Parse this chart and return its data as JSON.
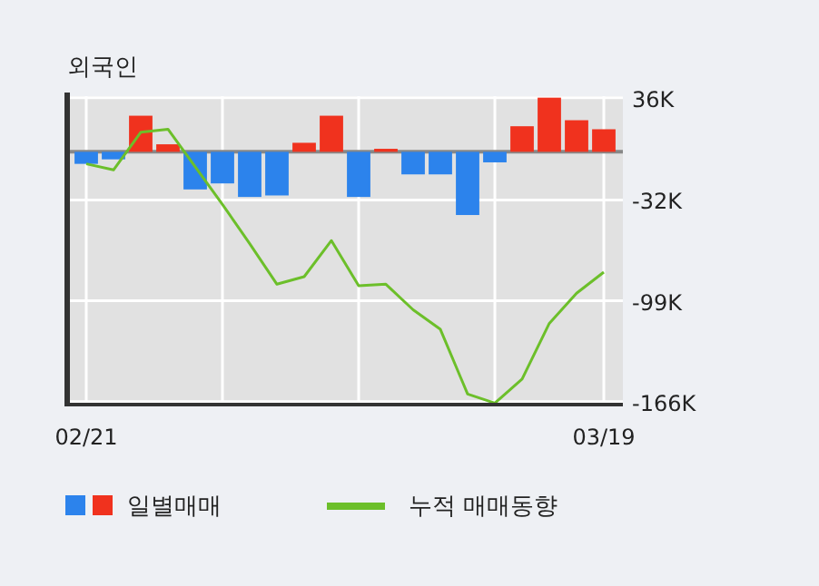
{
  "chart_data": {
    "type": "bar",
    "title": "외국인",
    "categories": [
      "02/21",
      null,
      null,
      null,
      null,
      null,
      null,
      null,
      null,
      null,
      null,
      null,
      null,
      null,
      null,
      null,
      null,
      null,
      null,
      "03/19"
    ],
    "series": [
      {
        "name": "일별매매",
        "colors": [
          "#2c83ec",
          "#2c83ec",
          "#f0321e",
          "#f0321e",
          "#2c83ec",
          "#2c83ec",
          "#2c83ec",
          "#2c83ec",
          "#f0321e",
          "#f0321e",
          "#2c83ec",
          "#f0321e",
          "#2c83ec",
          "#2c83ec",
          "#2c83ec",
          "#2c83ec",
          "#f0321e",
          "#f0321e",
          "#f0321e",
          "#f0321e"
        ],
        "values": [
          -8000,
          -5000,
          24000,
          5000,
          -25000,
          -21000,
          -30000,
          -29000,
          6000,
          24000,
          -30000,
          2000,
          -15000,
          -15000,
          -42000,
          -7000,
          17000,
          36000,
          21000,
          15000
        ]
      },
      {
        "name": "누적 매매동향",
        "type": "line",
        "color": "#6cbf2a",
        "values": [
          -8000,
          -12000,
          13000,
          15000,
          -10000,
          -35000,
          -61000,
          -88000,
          -83000,
          -59000,
          -89000,
          -88000,
          -105000,
          -118000,
          -161000,
          -167000,
          -151000,
          -114000,
          -94000,
          -80000
        ]
      }
    ],
    "ylim": [
      -168000,
      37000
    ],
    "yticks": [
      {
        "value": 36000,
        "label": "36K"
      },
      {
        "value": -32000,
        "label": "-32K"
      },
      {
        "value": -99000,
        "label": "-99K"
      },
      {
        "value": -166000,
        "label": "-166K"
      }
    ],
    "ref_lines": [
      {
        "axis": "y",
        "value": 0,
        "color": "#888888"
      }
    ],
    "grid": true,
    "legend": "bottom"
  }
}
